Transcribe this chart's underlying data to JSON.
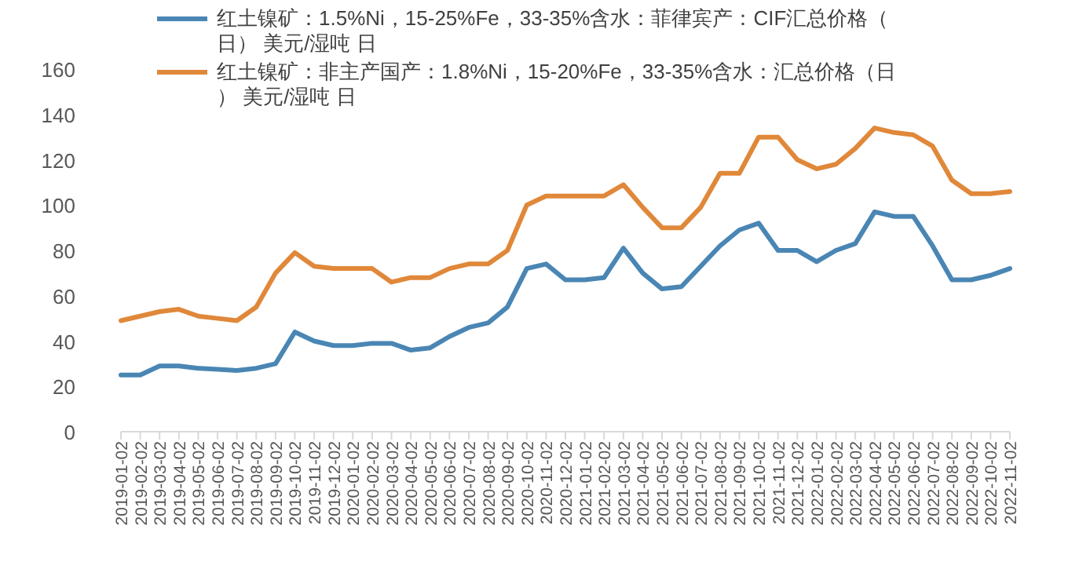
{
  "chart_data": {
    "type": "line",
    "categories": [
      "2019-01-02",
      "2019-02-02",
      "2019-03-02",
      "2019-04-02",
      "2019-05-02",
      "2019-06-02",
      "2019-07-02",
      "2019-08-02",
      "2019-09-02",
      "2019-10-02",
      "2019-11-02",
      "2019-12-02",
      "2020-01-02",
      "2020-02-02",
      "2020-03-02",
      "2020-04-02",
      "2020-05-02",
      "2020-06-02",
      "2020-07-02",
      "2020-08-02",
      "2020-09-02",
      "2020-10-02",
      "2020-11-02",
      "2020-12-02",
      "2021-01-02",
      "2021-02-02",
      "2021-03-02",
      "2021-04-02",
      "2021-05-02",
      "2021-06-02",
      "2021-07-02",
      "2021-08-02",
      "2021-09-02",
      "2021-10-02",
      "2021-11-02",
      "2021-12-02",
      "2022-01-02",
      "2022-02-02",
      "2022-03-02",
      "2022-04-02",
      "2022-05-02",
      "2022-06-02",
      "2022-07-02",
      "2022-08-02",
      "2022-09-02",
      "2022-10-02",
      "2022-11-02"
    ],
    "series": [
      {
        "name": "红土镍矿：1.5%Ni，15-25%Fe，33-35%含水：菲律宾产：CIF汇总价格（日） 美元/湿吨 日",
        "color": "#4a86b4",
        "values": [
          25,
          25,
          29,
          29,
          28,
          27.5,
          27,
          28,
          30,
          44,
          40,
          38,
          38,
          39,
          39,
          36,
          37,
          42,
          46,
          48,
          55,
          72,
          74,
          67,
          67,
          68,
          81,
          70,
          63,
          64,
          73,
          82,
          89,
          92,
          80,
          80,
          75,
          80,
          83,
          97,
          95,
          95,
          82,
          67,
          67,
          69,
          72
        ]
      },
      {
        "name": "红土镍矿：非主产国产：1.8%Ni，15-20%Fe，33-35%含水：汇总价格（日） 美元/湿吨 日",
        "color": "#e0883a",
        "values": [
          49,
          51,
          53,
          54,
          51,
          50,
          49,
          55,
          70,
          79,
          73,
          72,
          72,
          72,
          66,
          68,
          68,
          72,
          74,
          74,
          80,
          100,
          104,
          104,
          104,
          104,
          109,
          99,
          90,
          90,
          99,
          114,
          114,
          130,
          130,
          120,
          116,
          118,
          125,
          134,
          132,
          131,
          126,
          111,
          105,
          105,
          106
        ]
      }
    ],
    "ylim": [
      0,
      160
    ],
    "yticks": [
      0,
      20,
      40,
      60,
      80,
      100,
      120,
      140,
      160
    ],
    "grid": false,
    "legend": "top",
    "marker": "none",
    "line_style": "solid"
  }
}
